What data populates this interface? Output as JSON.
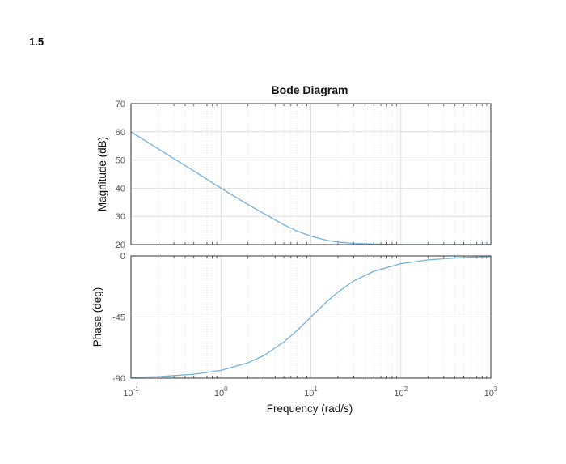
{
  "page": {
    "section_number": "1.5"
  },
  "chart_data": {
    "type": "line",
    "title": "Bode Diagram",
    "xlabel": "Frequency  (rad/s)",
    "x_scale": "log",
    "xlim": [
      0.1,
      1000
    ],
    "x_ticks": [
      {
        "value": 0.1,
        "base": "10",
        "exp": "-1"
      },
      {
        "value": 1,
        "base": "10",
        "exp": "0"
      },
      {
        "value": 10,
        "base": "10",
        "exp": "1"
      },
      {
        "value": 100,
        "base": "10",
        "exp": "2"
      },
      {
        "value": 1000,
        "base": "10",
        "exp": "3"
      }
    ],
    "grid": true,
    "line_color": "#72b1dc",
    "panels": [
      {
        "id": "magnitude",
        "ylabel": "Magnitude (dB)",
        "ylim": [
          20,
          70
        ],
        "y_ticks": [
          "20",
          "30",
          "40",
          "50",
          "60",
          "70"
        ],
        "x": [
          0.1,
          0.2,
          0.5,
          1,
          2,
          3,
          5,
          7,
          10,
          15,
          20,
          30,
          50,
          100,
          200,
          500,
          1000
        ],
        "y": [
          60.0,
          54.0,
          46.1,
          40.0,
          34.2,
          31.0,
          27.0,
          24.8,
          23.0,
          21.5,
          20.9,
          20.4,
          20.2,
          20.0,
          20.0,
          20.0,
          20.0
        ]
      },
      {
        "id": "phase",
        "ylabel": "Phase (deg)",
        "ylim": [
          -90,
          0
        ],
        "y_ticks": [
          "-90",
          "-45",
          "0"
        ],
        "x": [
          0.1,
          0.2,
          0.5,
          1,
          2,
          3,
          5,
          7,
          10,
          15,
          20,
          30,
          50,
          100,
          200,
          500,
          1000
        ],
        "y": [
          -89.4,
          -88.9,
          -87.1,
          -84.3,
          -78.7,
          -73.3,
          -63.4,
          -55.0,
          -45.0,
          -33.7,
          -26.6,
          -18.4,
          -11.3,
          -5.7,
          -2.9,
          -1.1,
          -0.6
        ]
      }
    ]
  }
}
